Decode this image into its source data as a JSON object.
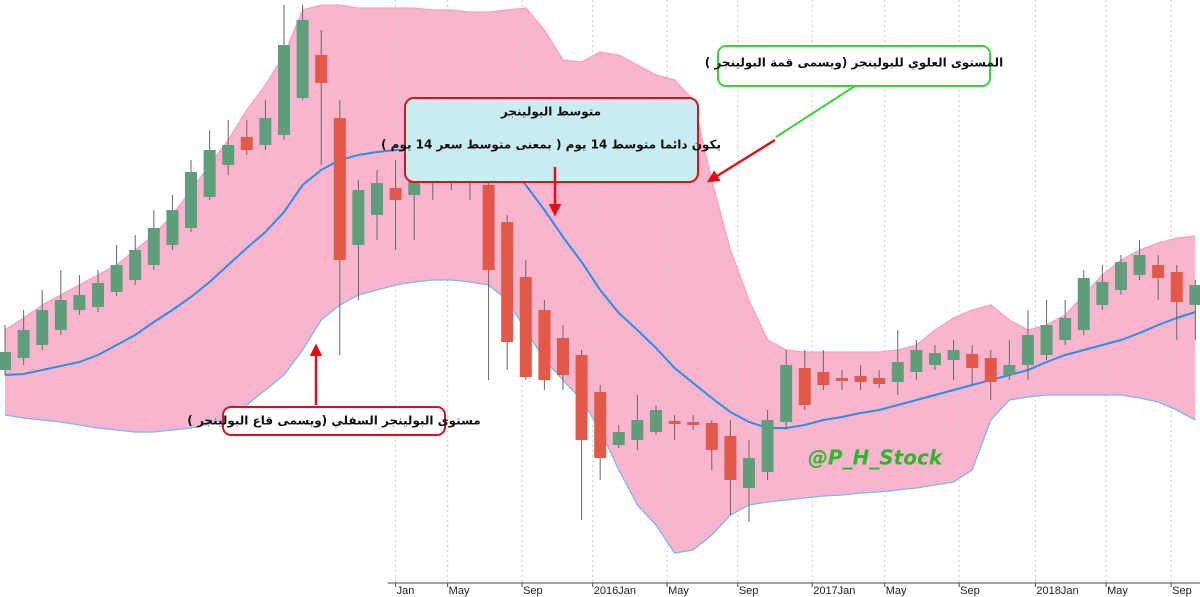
{
  "chart_data": {
    "type": "candlestick",
    "x": [
      0,
      1,
      2,
      3,
      4,
      5,
      6,
      7,
      8,
      9,
      10,
      11,
      12,
      13,
      14,
      15,
      16,
      17,
      18,
      19,
      20,
      21,
      22,
      23,
      24,
      25,
      26,
      27,
      28,
      29,
      30,
      31,
      32,
      33,
      34,
      35,
      36,
      37,
      38,
      39,
      40,
      41,
      42,
      43,
      44,
      45,
      46,
      47,
      48,
      49,
      50,
      51,
      52,
      53,
      54,
      55,
      56,
      57,
      58,
      59,
      60,
      61,
      62,
      63,
      64
    ],
    "open": [
      230,
      242,
      255,
      270,
      290,
      293,
      308,
      320,
      335,
      355,
      372,
      403,
      435,
      463,
      455,
      465,
      502,
      545,
      482,
      355,
      385,
      412,
      405,
      418,
      450,
      438,
      415,
      378,
      323,
      290,
      262,
      245,
      208,
      155,
      160,
      168,
      179,
      178,
      177,
      164,
      112,
      128,
      178,
      232,
      228,
      222,
      224,
      222,
      218,
      228,
      235,
      240,
      246,
      242,
      225,
      235,
      245,
      260,
      270,
      295,
      310,
      325,
      335,
      328,
      295
    ],
    "high": [
      275,
      290,
      310,
      330,
      325,
      330,
      355,
      365,
      390,
      405,
      440,
      470,
      480,
      480,
      500,
      595,
      595,
      570,
      500,
      420,
      430,
      440,
      450,
      460,
      470,
      455,
      430,
      385,
      340,
      300,
      275,
      250,
      215,
      175,
      205,
      195,
      185,
      185,
      180,
      180,
      160,
      190,
      250,
      250,
      250,
      230,
      235,
      230,
      270,
      260,
      255,
      260,
      255,
      250,
      260,
      290,
      300,
      300,
      330,
      335,
      345,
      360,
      345,
      335,
      320
    ],
    "low": [
      225,
      235,
      250,
      265,
      285,
      288,
      304,
      315,
      330,
      350,
      368,
      400,
      425,
      445,
      450,
      460,
      500,
      435,
      245,
      300,
      360,
      350,
      360,
      400,
      410,
      400,
      220,
      230,
      220,
      210,
      210,
      80,
      120,
      152,
      150,
      165,
      160,
      170,
      130,
      85,
      78,
      120,
      170,
      190,
      210,
      210,
      210,
      212,
      205,
      220,
      230,
      220,
      215,
      200,
      220,
      220,
      240,
      255,
      265,
      290,
      305,
      320,
      300,
      260,
      260
    ],
    "close": [
      248,
      270,
      290,
      300,
      305,
      317,
      335,
      350,
      372,
      390,
      428,
      450,
      455,
      450,
      482,
      555,
      580,
      517,
      340,
      410,
      417,
      400,
      427,
      445,
      435,
      417,
      330,
      258,
      223,
      220,
      225,
      160,
      142,
      168,
      180,
      190,
      176,
      175,
      150,
      120,
      142,
      180,
      235,
      195,
      215,
      219,
      218,
      216,
      238,
      250,
      247,
      250,
      232,
      218,
      235,
      265,
      275,
      282,
      322,
      318,
      338,
      345,
      322,
      298,
      315
    ],
    "up_color": "#5e9e7c",
    "down_color": "#e2594a",
    "band_fill": "#f9b5cd",
    "series": [
      {
        "color": "#f4a3c0",
        "values": [
          270,
          282,
          295,
          305,
          315,
          325,
          335,
          350,
          365,
          385,
          410,
          435,
          460,
          490,
          515,
          545,
          590,
          595,
          595,
          592,
          592,
          592,
          592,
          590,
          590,
          588,
          588,
          590,
          592,
          570,
          540,
          538,
          548,
          545,
          535,
          525,
          520,
          500,
          420,
          350,
          300,
          260,
          250,
          248,
          248,
          248,
          248,
          248,
          250,
          255,
          270,
          282,
          290,
          295,
          280,
          270,
          275,
          285,
          305,
          325,
          340,
          350,
          357,
          362,
          364
        ]
      },
      {
        "color": "#2b8de6",
        "values": [
          225,
          226,
          230,
          234,
          238,
          245,
          255,
          265,
          278,
          290,
          303,
          318,
          335,
          352,
          368,
          388,
          415,
          430,
          440,
          445,
          448,
          450,
          450,
          450,
          450,
          448,
          445,
          435,
          415,
          390,
          363,
          338,
          310,
          287,
          270,
          252,
          232,
          217,
          202,
          188,
          178,
          172,
          172,
          175,
          180,
          183,
          187,
          190,
          195,
          200,
          205,
          210,
          215,
          220,
          225,
          230,
          238,
          245,
          250,
          255,
          260,
          267,
          275,
          282,
          288
        ]
      },
      {
        "color": "#7ab8ea",
        "values": [
          185,
          182,
          180,
          178,
          175,
          172,
          170,
          168,
          168,
          170,
          172,
          176,
          182,
          195,
          210,
          225,
          250,
          280,
          295,
          305,
          310,
          315,
          318,
          320,
          320,
          318,
          315,
          300,
          270,
          240,
          220,
          200,
          170,
          130,
          95,
          75,
          47,
          50,
          65,
          85,
          95,
          98,
          100,
          102,
          104,
          105,
          107,
          108,
          110,
          112,
          115,
          118,
          130,
          180,
          200,
          203,
          205,
          205,
          205,
          205,
          205,
          202,
          198,
          190,
          180
        ]
      }
    ],
    "xlim": [
      -0.27,
      64.25
    ],
    "ylim": [
      15,
      600
    ],
    "xticks": [
      {
        "value": 21.0,
        "label": "Jan"
      },
      {
        "value": 23.8,
        "label": "May"
      },
      {
        "value": 27.8,
        "label": "Sep"
      },
      {
        "value": 31.6,
        "label": "2016Jan"
      },
      {
        "value": 35.6,
        "label": "May"
      },
      {
        "value": 39.4,
        "label": "Sep"
      },
      {
        "value": 43.4,
        "label": "2017Jan"
      },
      {
        "value": 47.3,
        "label": "May"
      },
      {
        "value": 51.3,
        "label": "Sep"
      },
      {
        "value": 55.4,
        "label": "2018Jan"
      },
      {
        "value": 59.2,
        "label": "May"
      },
      {
        "value": 62.7,
        "label": "Sep"
      }
    ],
    "grid": true,
    "annotations": [
      {
        "text": "المستوى العلوي للبولينجر (ويسمى قمة البولينجر )"
      },
      {
        "title": "متوسط البولينجر",
        "text": "يكون دائما متوسط 14 يوم ( بمعنى متوسط سعر 14 يوم )"
      },
      {
        "text": "مستوى البولينجر  السفلي (ويسمى قاع البولينجر )"
      }
    ],
    "watermark": "@P_H_Stock"
  }
}
